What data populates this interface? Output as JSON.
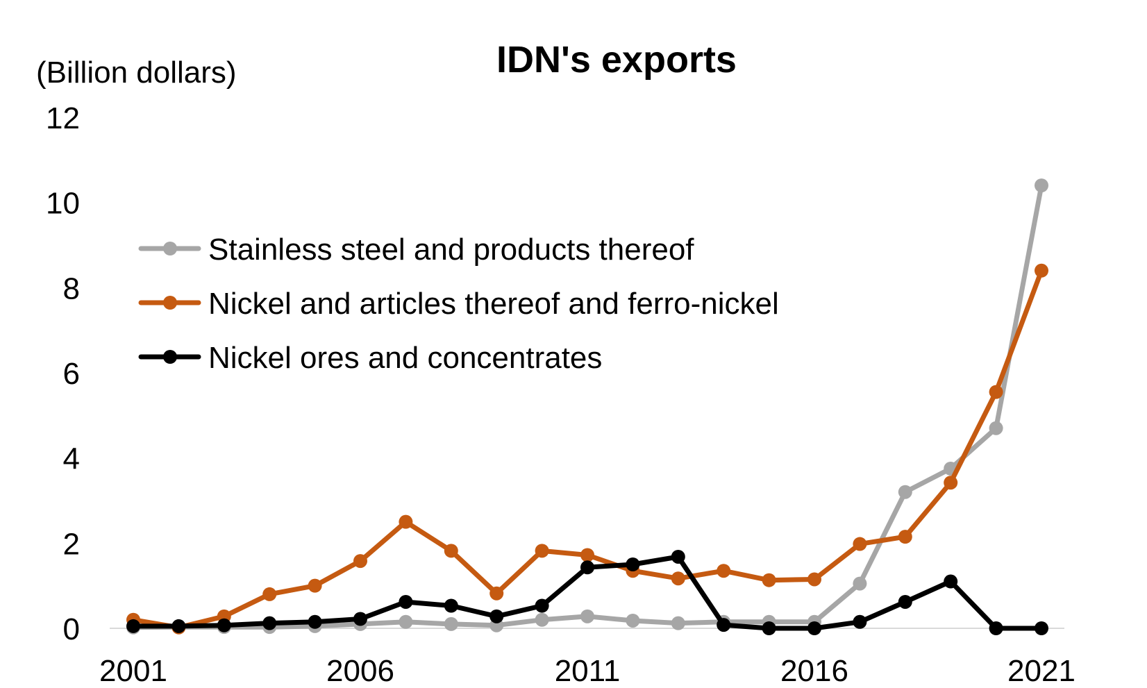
{
  "chart_data": {
    "type": "line",
    "title": "IDN's exports",
    "ylabel": "(Billion dollars)",
    "xlabel": "",
    "x": [
      2001,
      2002,
      2003,
      2004,
      2005,
      2006,
      2007,
      2008,
      2009,
      2010,
      2011,
      2012,
      2013,
      2014,
      2015,
      2016,
      2017,
      2018,
      2019,
      2020,
      2021
    ],
    "x_ticks": [
      "2001",
      "2006",
      "2011",
      "2016",
      "2021"
    ],
    "x_tick_values": [
      2001,
      2006,
      2011,
      2016,
      2021
    ],
    "y_ticks": [
      "0",
      "2",
      "4",
      "6",
      "8",
      "10",
      "12"
    ],
    "y_tick_values": [
      0,
      2,
      4,
      6,
      8,
      10,
      12
    ],
    "ylim": [
      0,
      12
    ],
    "xlim": [
      2001,
      2021
    ],
    "grid": false,
    "legend_position": "upper-left",
    "series": [
      {
        "name": "Stainless steel and products thereof",
        "color": "#A6A6A6",
        "values": [
          0.02,
          0.03,
          0.03,
          0.03,
          0.05,
          0.1,
          0.15,
          0.1,
          0.07,
          0.2,
          0.28,
          0.18,
          0.12,
          0.15,
          0.15,
          0.15,
          1.05,
          3.2,
          3.75,
          4.7,
          10.4
        ]
      },
      {
        "name": "Nickel and articles thereof and ferro-nickel",
        "color": "#C55A11",
        "values": [
          0.2,
          0.02,
          0.28,
          0.8,
          1.0,
          1.58,
          2.5,
          1.82,
          0.82,
          1.82,
          1.72,
          1.35,
          1.17,
          1.35,
          1.13,
          1.15,
          1.98,
          2.15,
          3.42,
          5.55,
          8.4
        ]
      },
      {
        "name": "Nickel ores and concentrates",
        "color": "#000000",
        "values": [
          0.05,
          0.05,
          0.07,
          0.12,
          0.15,
          0.22,
          0.62,
          0.53,
          0.28,
          0.53,
          1.43,
          1.5,
          1.68,
          0.08,
          0.0,
          0.0,
          0.15,
          0.62,
          1.1,
          0.0,
          0.0
        ]
      }
    ]
  }
}
